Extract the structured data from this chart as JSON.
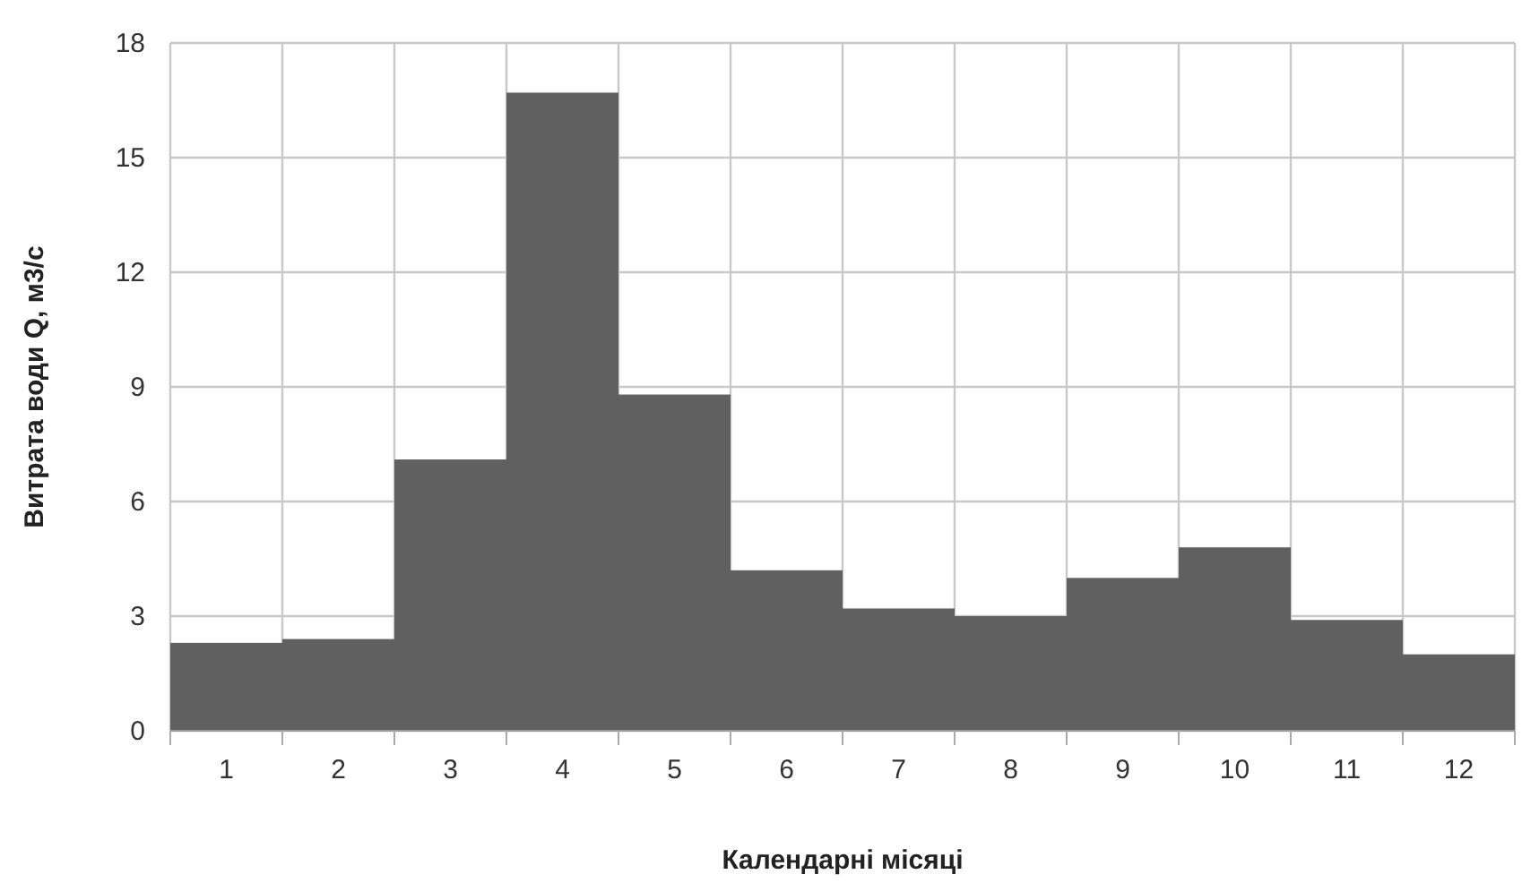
{
  "chart_data": {
    "type": "bar",
    "xlabel": "Календарні місяці",
    "ylabel": "Витрата води Q, м3/с",
    "categories": [
      "1",
      "2",
      "3",
      "4",
      "5",
      "6",
      "7",
      "8",
      "9",
      "10",
      "11",
      "12"
    ],
    "values": [
      2.3,
      2.4,
      7.1,
      16.7,
      8.8,
      4.2,
      3.2,
      3.0,
      4.0,
      4.8,
      2.9,
      2.0
    ],
    "color": "#606060",
    "ylim": [
      0,
      18
    ],
    "yticks": [
      0,
      3,
      6,
      9,
      12,
      15,
      18
    ],
    "grid": true
  }
}
